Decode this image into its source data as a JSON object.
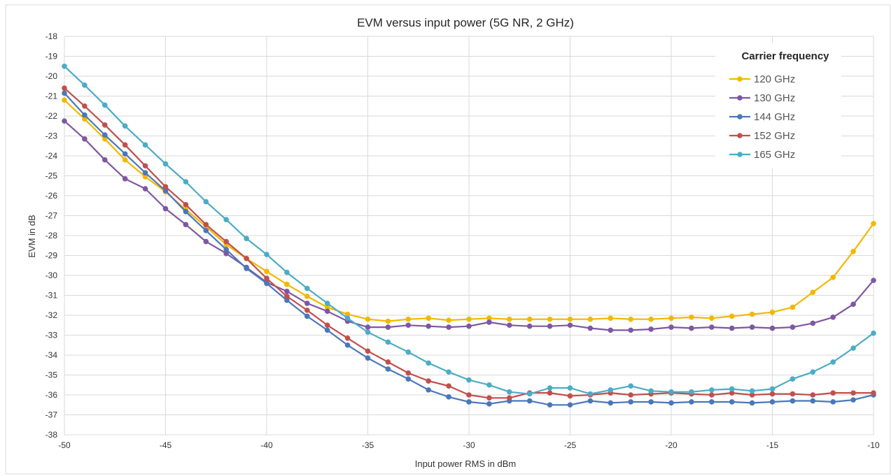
{
  "chart_data": {
    "type": "line",
    "title": "EVM versus input power (5G NR, 2 GHz)",
    "xlabel": "Input power RMS in dBm",
    "ylabel": "EVM in dB",
    "xlim": [
      -50,
      -10
    ],
    "ylim": [
      -38,
      -18
    ],
    "x_ticks": [
      -50,
      -45,
      -40,
      -35,
      -30,
      -25,
      -20,
      -15,
      -10
    ],
    "y_ticks": [
      -18,
      -19,
      -20,
      -21,
      -22,
      -23,
      -24,
      -25,
      -26,
      -27,
      -28,
      -29,
      -30,
      -31,
      -32,
      -33,
      -34,
      -35,
      -36,
      -37,
      -38
    ],
    "grid": true,
    "legend": {
      "title": "Carrier frequency",
      "placement": "top-right"
    },
    "x": [
      -50,
      -49,
      -48,
      -47,
      -46,
      -45,
      -44,
      -43,
      -42,
      -41,
      -40,
      -39,
      -38,
      -37,
      -36,
      -35,
      -34,
      -33,
      -32,
      -31,
      -30,
      -29,
      -28,
      -27,
      -26,
      -25,
      -24,
      -23,
      -22,
      -21,
      -20,
      -19,
      -18,
      -17,
      -16,
      -15,
      -14,
      -13,
      -12,
      -11,
      -10
    ],
    "series": [
      {
        "name": "120 GHz",
        "color": "#F2B800",
        "values": [
          -21.2,
          -22.15,
          -23.15,
          -24.2,
          -25.05,
          -25.8,
          -26.7,
          -27.55,
          -28.45,
          -29.15,
          -29.8,
          -30.45,
          -31.05,
          -31.6,
          -31.95,
          -32.2,
          -32.3,
          -32.2,
          -32.15,
          -32.25,
          -32.2,
          -32.15,
          -32.2,
          -32.2,
          -32.2,
          -32.2,
          -32.2,
          -32.15,
          -32.2,
          -32.2,
          -32.15,
          -32.1,
          -32.15,
          -32.05,
          -31.95,
          -31.85,
          -31.6,
          -30.85,
          -30.1,
          -28.8,
          -27.4
        ]
      },
      {
        "name": "130 GHz",
        "color": "#7E57A3",
        "values": [
          -22.25,
          -23.15,
          -24.2,
          -25.15,
          -25.65,
          -26.65,
          -27.45,
          -28.3,
          -28.9,
          -29.6,
          -30.35,
          -30.8,
          -31.4,
          -31.8,
          -32.3,
          -32.6,
          -32.6,
          -32.5,
          -32.55,
          -32.6,
          -32.55,
          -32.35,
          -32.5,
          -32.55,
          -32.55,
          -32.5,
          -32.65,
          -32.75,
          -32.75,
          -32.7,
          -32.6,
          -32.65,
          -32.6,
          -32.65,
          -32.6,
          -32.65,
          -32.6,
          -32.4,
          -32.1,
          -31.45,
          -30.25
        ]
      },
      {
        "name": "144 GHz",
        "color": "#4A77BB",
        "values": [
          -20.85,
          -21.95,
          -22.95,
          -23.9,
          -24.85,
          -25.75,
          -26.8,
          -27.75,
          -28.7,
          -29.65,
          -30.4,
          -31.25,
          -32.05,
          -32.75,
          -33.5,
          -34.15,
          -34.7,
          -35.2,
          -35.75,
          -36.1,
          -36.35,
          -36.45,
          -36.3,
          -36.3,
          -36.5,
          -36.5,
          -36.3,
          -36.4,
          -36.35,
          -36.35,
          -36.4,
          -36.35,
          -36.35,
          -36.35,
          -36.4,
          -36.35,
          -36.3,
          -36.3,
          -36.35,
          -36.25,
          -36.0
        ]
      },
      {
        "name": "152 GHz",
        "color": "#C0504D",
        "values": [
          -20.6,
          -21.5,
          -22.45,
          -23.45,
          -24.5,
          -25.55,
          -26.45,
          -27.45,
          -28.3,
          -29.15,
          -30.15,
          -31.05,
          -31.75,
          -32.5,
          -33.15,
          -33.8,
          -34.35,
          -34.9,
          -35.3,
          -35.55,
          -36.0,
          -36.15,
          -36.15,
          -35.9,
          -35.9,
          -36.05,
          -36.0,
          -35.9,
          -36.0,
          -35.95,
          -35.9,
          -35.95,
          -36.0,
          -35.9,
          -36.0,
          -35.95,
          -35.95,
          -36.0,
          -35.9,
          -35.9,
          -35.9
        ]
      },
      {
        "name": "165 GHz",
        "color": "#4BACC6",
        "values": [
          -19.5,
          -20.45,
          -21.45,
          -22.5,
          -23.45,
          -24.4,
          -25.3,
          -26.3,
          -27.2,
          -28.15,
          -28.95,
          -29.85,
          -30.65,
          -31.4,
          -32.15,
          -32.85,
          -33.35,
          -33.85,
          -34.4,
          -34.85,
          -35.25,
          -35.5,
          -35.85,
          -35.95,
          -35.65,
          -35.65,
          -35.95,
          -35.75,
          -35.55,
          -35.8,
          -35.85,
          -35.85,
          -35.75,
          -35.7,
          -35.8,
          -35.7,
          -35.2,
          -34.85,
          -34.35,
          -33.65,
          -32.9
        ]
      }
    ]
  }
}
